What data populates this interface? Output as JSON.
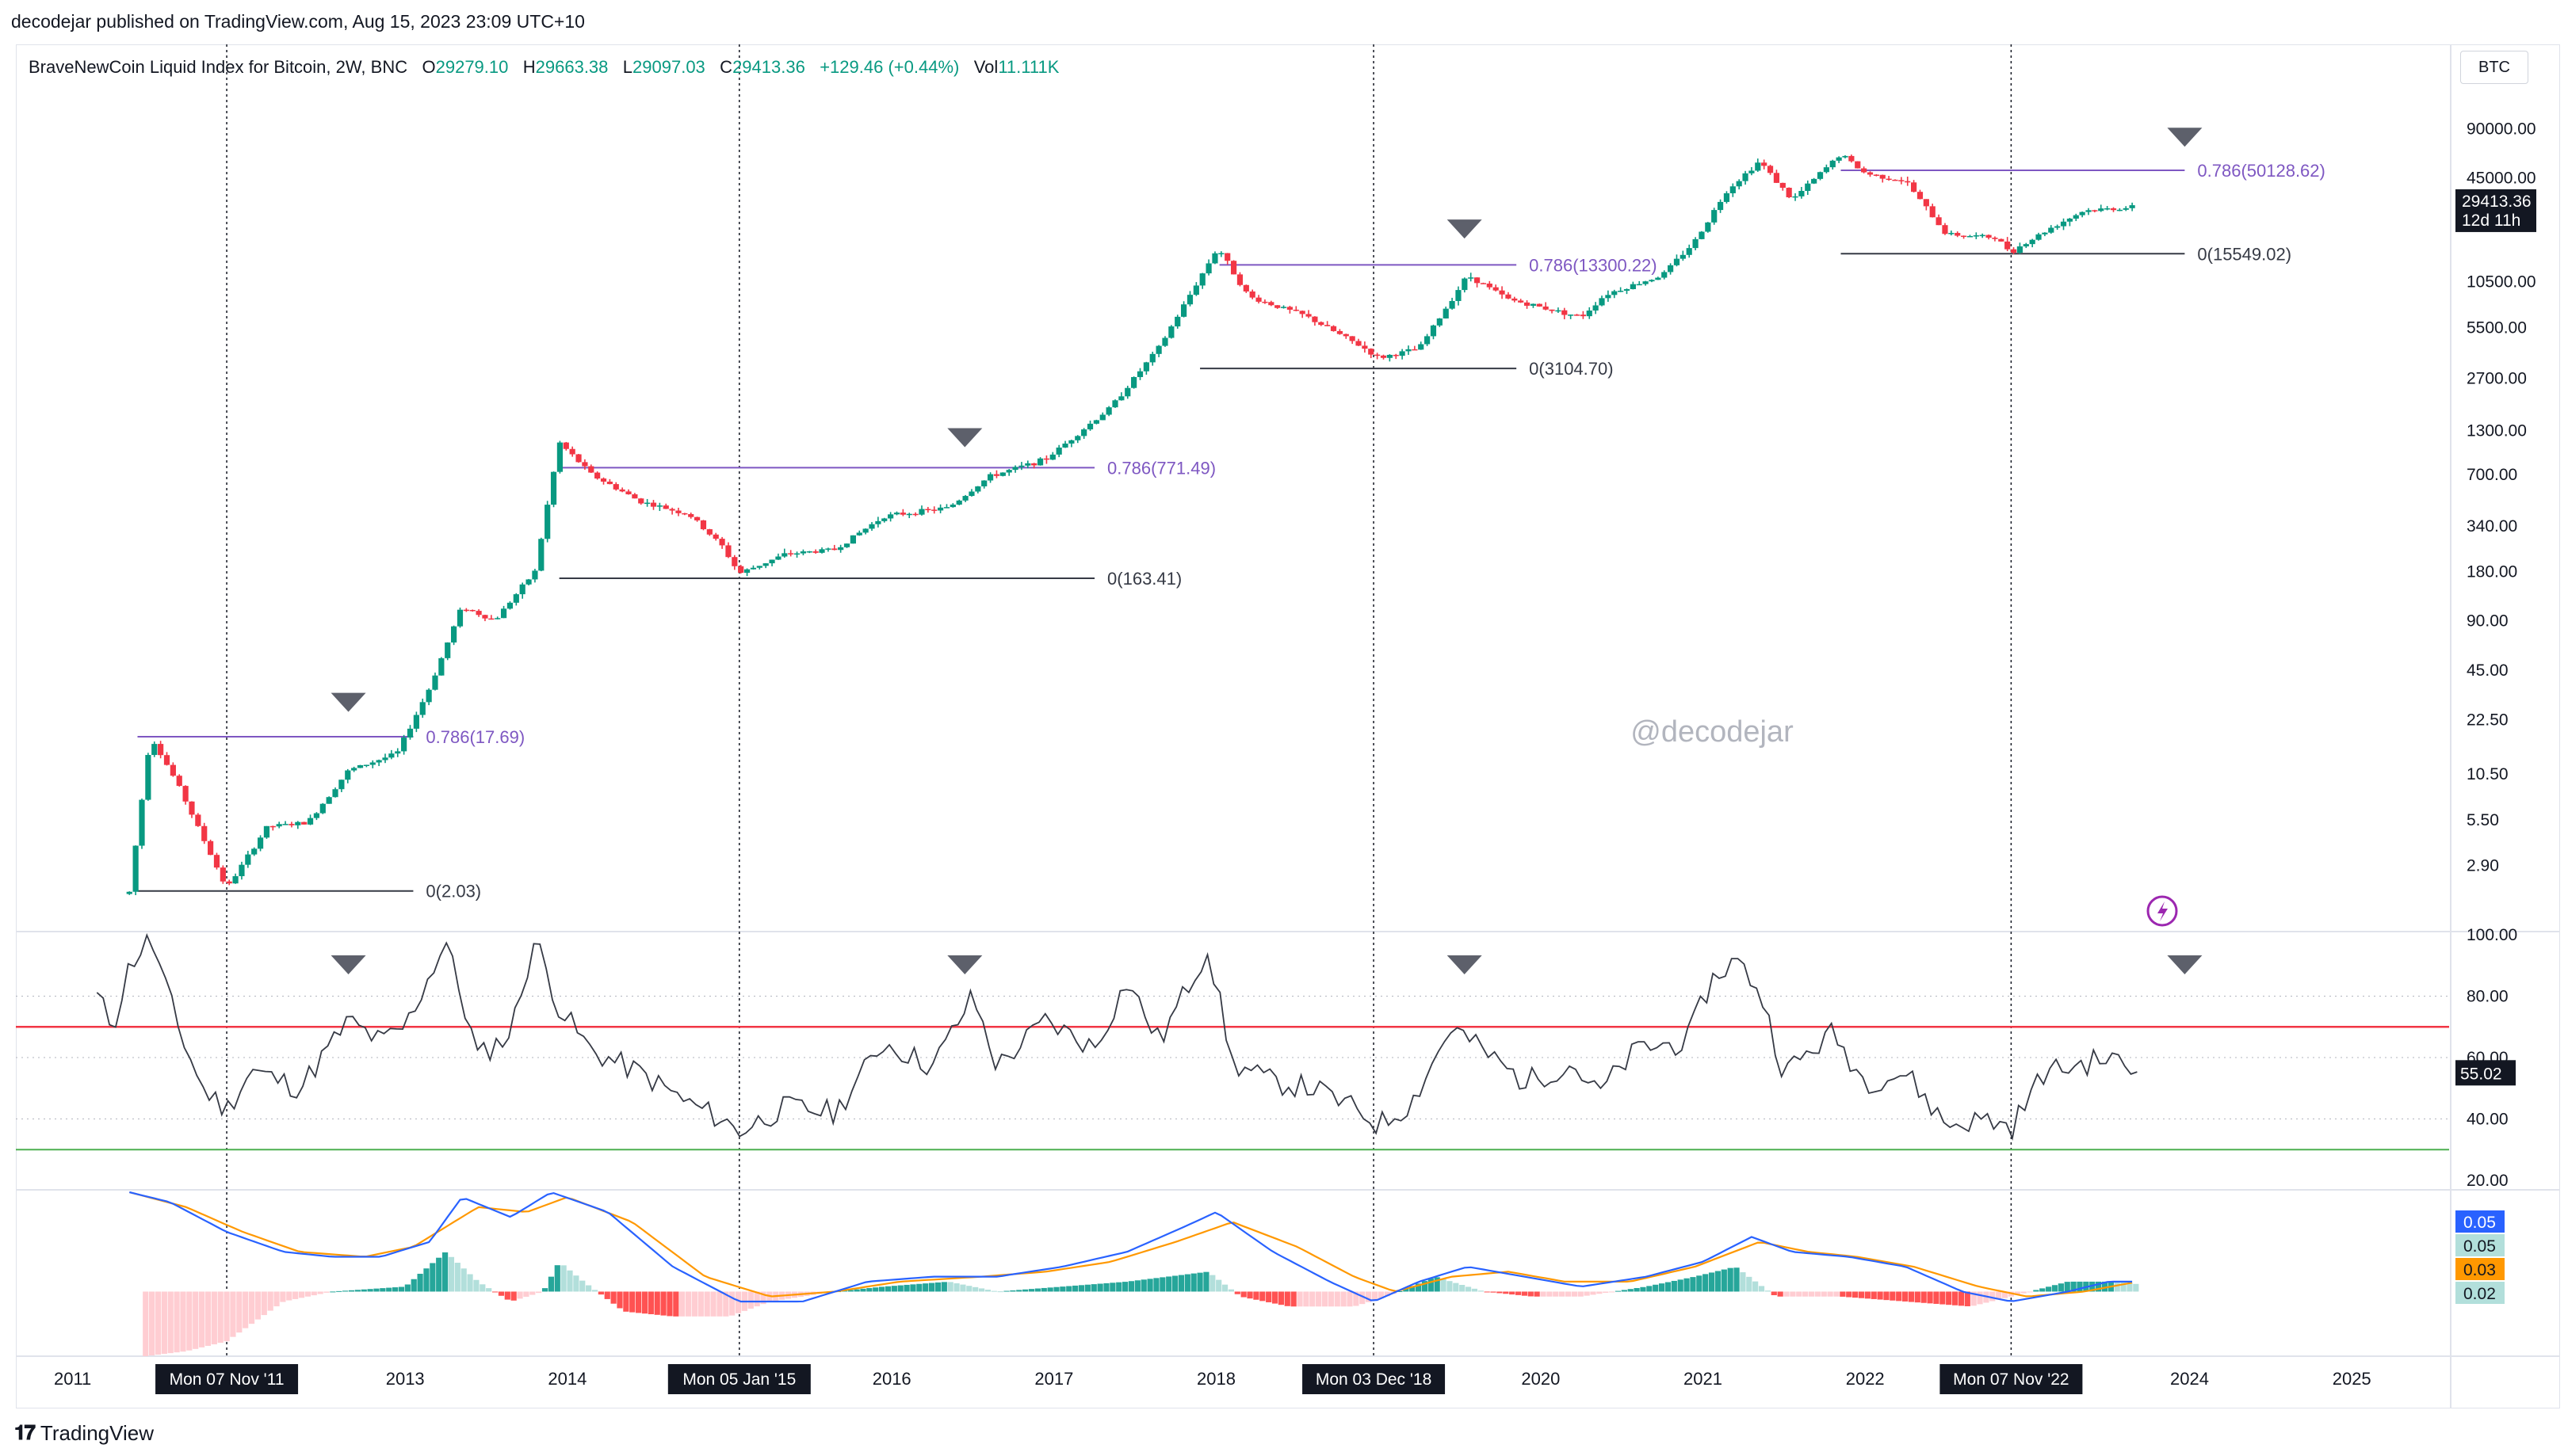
{
  "publisher": "decodejar published on TradingView.com, Aug 15, 2023 23:09 UTC+10",
  "legend": {
    "title": "BraveNewCoin Liquid Index for Bitcoin, 2W, BNC",
    "o_label": "O",
    "o": "29279.10",
    "h_label": "H",
    "h": "29663.38",
    "l_label": "L",
    "l": "29097.03",
    "c_label": "C",
    "c": "29413.36",
    "change": "+129.46 (+0.44%)",
    "vol_label": "Vol",
    "vol": "11.111K"
  },
  "currency": "BTC",
  "watermark": "@decodejar",
  "footer_brand": "TradingView",
  "colors": {
    "up": "#089981",
    "down": "#f23645",
    "fib": "#7e57c2",
    "rsi": "#363a45",
    "macd": "#2962ff",
    "signal": "#ff9800",
    "upper_band": "#f23645",
    "lower_band": "#4caf50"
  },
  "chart_data": [
    {
      "type": "candlestick",
      "scale": "log",
      "ylim": [
        1.2,
        180000
      ],
      "price_ticks": [
        "90000.00",
        "45000.00",
        "10500.00",
        "5500.00",
        "2700.00",
        "1300.00",
        "700.00",
        "340.00",
        "180.00",
        "90.00",
        "45.00",
        "22.50",
        "10.50",
        "5.50",
        "2.90"
      ],
      "price_tick_values": [
        90000,
        45000,
        10500,
        5500,
        2700,
        1300,
        700,
        340,
        180,
        90,
        45,
        22.5,
        10.5,
        5.5,
        2.9
      ],
      "last_price": "29413.36",
      "countdown": "12d 11h",
      "x_labels": [
        "2011",
        "2013",
        "2014",
        "2016",
        "2017",
        "2018",
        "2020",
        "2021",
        "2022",
        "2024",
        "2025"
      ],
      "x_label_years": [
        2010.9,
        2012.95,
        2013.95,
        2015.95,
        2016.95,
        2017.95,
        2019.95,
        2020.95,
        2021.95,
        2023.95,
        2024.95
      ],
      "date_markers": [
        {
          "label": "Mon 07 Nov '11",
          "year": 2011.85
        },
        {
          "label": "Mon 05 Jan '15",
          "year": 2015.01
        },
        {
          "label": "Mon 03 Dec '18",
          "year": 2018.92
        },
        {
          "label": "Mon 07 Nov '22",
          "year": 2022.85
        }
      ],
      "fib_levels": [
        {
          "label": "0.786(17.69)",
          "price": 17.69,
          "x1": 2011.3,
          "x2": 2013.0,
          "kind": "fib"
        },
        {
          "label": "0(2.03)",
          "price": 2.03,
          "x1": 2011.3,
          "x2": 2013.0,
          "kind": "zero"
        },
        {
          "label": "0.786(771.49)",
          "price": 771.49,
          "x1": 2013.9,
          "x2": 2017.2,
          "kind": "fib"
        },
        {
          "label": "0(163.41)",
          "price": 163.41,
          "x1": 2013.9,
          "x2": 2017.2,
          "kind": "zero"
        },
        {
          "label": "0.786(13300.22)",
          "price": 13300.22,
          "x1": 2017.97,
          "x2": 2019.8,
          "kind": "fib"
        },
        {
          "label": "0(3104.70)",
          "price": 3104.7,
          "x1": 2017.85,
          "x2": 2019.8,
          "kind": "zero"
        },
        {
          "label": "0.786(50128.62)",
          "price": 50128.62,
          "x1": 2021.8,
          "x2": 2023.92,
          "kind": "fib"
        },
        {
          "label": "0(15549.02)",
          "price": 15549.02,
          "x1": 2021.8,
          "x2": 2023.92,
          "kind": "zero"
        }
      ],
      "top_markers": [
        {
          "year": 2012.6,
          "price": 28
        },
        {
          "year": 2016.4,
          "price": 1150
        },
        {
          "year": 2019.48,
          "price": 21500
        },
        {
          "year": 2023.92,
          "price": 78000
        }
      ],
      "anchors": [
        [
          2011.25,
          2.0
        ],
        [
          2011.38,
          18
        ],
        [
          2011.55,
          9
        ],
        [
          2011.85,
          2.1
        ],
        [
          2012.1,
          5
        ],
        [
          2012.35,
          5.3
        ],
        [
          2012.6,
          11
        ],
        [
          2012.9,
          14
        ],
        [
          2013.1,
          35
        ],
        [
          2013.3,
          110
        ],
        [
          2013.5,
          90
        ],
        [
          2013.75,
          180
        ],
        [
          2013.9,
          1100
        ],
        [
          2014.1,
          700
        ],
        [
          2014.4,
          480
        ],
        [
          2014.7,
          400
        ],
        [
          2014.9,
          260
        ],
        [
          2015.01,
          175
        ],
        [
          2015.3,
          230
        ],
        [
          2015.6,
          245
        ],
        [
          2015.9,
          390
        ],
        [
          2016.3,
          440
        ],
        [
          2016.55,
          680
        ],
        [
          2016.9,
          870
        ],
        [
          2017.3,
          1800
        ],
        [
          2017.6,
          4200
        ],
        [
          2017.96,
          17000
        ],
        [
          2018.15,
          8500
        ],
        [
          2018.5,
          6500
        ],
        [
          2018.85,
          4200
        ],
        [
          2018.95,
          3600
        ],
        [
          2019.2,
          4100
        ],
        [
          2019.5,
          11500
        ],
        [
          2019.75,
          8200
        ],
        [
          2020.2,
          6400
        ],
        [
          2020.35,
          8800
        ],
        [
          2020.7,
          11500
        ],
        [
          2020.9,
          18500
        ],
        [
          2021.1,
          38000
        ],
        [
          2021.3,
          57000
        ],
        [
          2021.5,
          33000
        ],
        [
          2021.8,
          63000
        ],
        [
          2021.95,
          48000
        ],
        [
          2022.2,
          43000
        ],
        [
          2022.45,
          20500
        ],
        [
          2022.75,
          19500
        ],
        [
          2022.85,
          16000
        ],
        [
          2023.1,
          22500
        ],
        [
          2023.3,
          28500
        ],
        [
          2023.6,
          29800
        ],
        [
          2023.63,
          29413
        ]
      ],
      "last_date": 2023.63
    },
    {
      "type": "line",
      "name": "RSI",
      "ylim": [
        20,
        100
      ],
      "y_ticks": [
        "100.00",
        "80.00",
        "60.00",
        "40.00",
        "20.00"
      ],
      "y_tick_values": [
        100,
        80,
        60,
        40,
        20
      ],
      "upper_band": 70,
      "lower_band": 30,
      "last_value": "55.02",
      "anchors": [
        [
          2011.05,
          80
        ],
        [
          2011.15,
          70
        ],
        [
          2011.25,
          90
        ],
        [
          2011.38,
          99
        ],
        [
          2011.55,
          70
        ],
        [
          2011.7,
          50
        ],
        [
          2011.85,
          43
        ],
        [
          2012.0,
          56
        ],
        [
          2012.3,
          50
        ],
        [
          2012.6,
          72
        ],
        [
          2012.8,
          65
        ],
        [
          2012.95,
          70
        ],
        [
          2013.2,
          98
        ],
        [
          2013.4,
          60
        ],
        [
          2013.6,
          68
        ],
        [
          2013.75,
          99
        ],
        [
          2013.9,
          76
        ],
        [
          2014.1,
          62
        ],
        [
          2014.4,
          55
        ],
        [
          2014.7,
          45
        ],
        [
          2014.9,
          40
        ],
        [
          2015.01,
          36
        ],
        [
          2015.3,
          44
        ],
        [
          2015.6,
          42
        ],
        [
          2015.9,
          65
        ],
        [
          2016.2,
          57
        ],
        [
          2016.45,
          80
        ],
        [
          2016.6,
          57
        ],
        [
          2016.9,
          72
        ],
        [
          2017.2,
          63
        ],
        [
          2017.4,
          85
        ],
        [
          2017.6,
          65
        ],
        [
          2017.9,
          96
        ],
        [
          2018.05,
          58
        ],
        [
          2018.3,
          52
        ],
        [
          2018.55,
          50
        ],
        [
          2018.85,
          42
        ],
        [
          2018.95,
          38
        ],
        [
          2019.15,
          45
        ],
        [
          2019.4,
          70
        ],
        [
          2019.6,
          62
        ],
        [
          2019.85,
          52
        ],
        [
          2020.15,
          58
        ],
        [
          2020.3,
          48
        ],
        [
          2020.55,
          63
        ],
        [
          2020.85,
          65
        ],
        [
          2021.0,
          85
        ],
        [
          2021.15,
          92
        ],
        [
          2021.3,
          82
        ],
        [
          2021.45,
          55
        ],
        [
          2021.75,
          68
        ],
        [
          2021.95,
          52
        ],
        [
          2022.2,
          55
        ],
        [
          2022.45,
          38
        ],
        [
          2022.7,
          40
        ],
        [
          2022.85,
          37
        ],
        [
          2023.05,
          55
        ],
        [
          2023.3,
          58
        ],
        [
          2023.45,
          60
        ],
        [
          2023.63,
          55
        ]
      ]
    },
    {
      "type": "histogram+line",
      "name": "MACD",
      "ylim": [
        -0.13,
        0.2
      ],
      "values": [
        "0.05",
        "0.05",
        "0.03",
        "0.02"
      ],
      "histogram_anchors": [
        [
          2011.35,
          -0.13
        ],
        [
          2011.6,
          -0.12
        ],
        [
          2011.85,
          -0.1
        ],
        [
          2012.2,
          -0.02
        ],
        [
          2012.5,
          0.0
        ],
        [
          2012.95,
          0.01
        ],
        [
          2013.2,
          0.08
        ],
        [
          2013.4,
          0.02
        ],
        [
          2013.6,
          -0.02
        ],
        [
          2013.8,
          0.0
        ],
        [
          2013.9,
          0.06
        ],
        [
          2014.05,
          0.02
        ],
        [
          2014.3,
          -0.04
        ],
        [
          2014.6,
          -0.05
        ],
        [
          2014.95,
          -0.05
        ],
        [
          2015.2,
          -0.02
        ],
        [
          2015.6,
          0.0
        ],
        [
          2015.9,
          0.01
        ],
        [
          2016.3,
          0.02
        ],
        [
          2016.6,
          0.0
        ],
        [
          2017.0,
          0.01
        ],
        [
          2017.4,
          0.02
        ],
        [
          2017.9,
          0.04
        ],
        [
          2018.1,
          -0.01
        ],
        [
          2018.4,
          -0.03
        ],
        [
          2018.8,
          -0.03
        ],
        [
          2019.0,
          -0.01
        ],
        [
          2019.3,
          0.03
        ],
        [
          2019.6,
          0.0
        ],
        [
          2019.9,
          -0.01
        ],
        [
          2020.2,
          -0.01
        ],
        [
          2020.6,
          0.01
        ],
        [
          2020.9,
          0.03
        ],
        [
          2021.15,
          0.05
        ],
        [
          2021.4,
          -0.01
        ],
        [
          2021.8,
          -0.01
        ],
        [
          2022.2,
          -0.02
        ],
        [
          2022.6,
          -0.03
        ],
        [
          2022.85,
          -0.01
        ],
        [
          2023.2,
          0.02
        ],
        [
          2023.5,
          0.02
        ],
        [
          2023.63,
          0.015
        ]
      ],
      "macd_anchors": [
        [
          2011.25,
          0.2
        ],
        [
          2011.5,
          0.18
        ],
        [
          2011.85,
          0.12
        ],
        [
          2012.2,
          0.08
        ],
        [
          2012.5,
          0.07
        ],
        [
          2012.8,
          0.07
        ],
        [
          2013.1,
          0.1
        ],
        [
          2013.3,
          0.19
        ],
        [
          2013.6,
          0.15
        ],
        [
          2013.85,
          0.2
        ],
        [
          2014.2,
          0.16
        ],
        [
          2014.6,
          0.05
        ],
        [
          2015.01,
          -0.02
        ],
        [
          2015.4,
          -0.02
        ],
        [
          2015.8,
          0.02
        ],
        [
          2016.2,
          0.03
        ],
        [
          2016.6,
          0.03
        ],
        [
          2017.0,
          0.05
        ],
        [
          2017.4,
          0.08
        ],
        [
          2017.75,
          0.13
        ],
        [
          2017.95,
          0.16
        ],
        [
          2018.3,
          0.08
        ],
        [
          2018.65,
          0.02
        ],
        [
          2018.92,
          -0.02
        ],
        [
          2019.2,
          0.02
        ],
        [
          2019.5,
          0.05
        ],
        [
          2019.85,
          0.03
        ],
        [
          2020.2,
          0.01
        ],
        [
          2020.6,
          0.03
        ],
        [
          2020.95,
          0.06
        ],
        [
          2021.25,
          0.11
        ],
        [
          2021.5,
          0.08
        ],
        [
          2021.85,
          0.07
        ],
        [
          2022.2,
          0.05
        ],
        [
          2022.55,
          0.0
        ],
        [
          2022.85,
          -0.02
        ],
        [
          2023.2,
          0.0
        ],
        [
          2023.45,
          0.02
        ],
        [
          2023.63,
          0.02
        ]
      ],
      "signal_anchors": [
        [
          2011.25,
          0.2
        ],
        [
          2011.6,
          0.17
        ],
        [
          2011.95,
          0.12
        ],
        [
          2012.3,
          0.08
        ],
        [
          2012.7,
          0.07
        ],
        [
          2013.0,
          0.09
        ],
        [
          2013.4,
          0.17
        ],
        [
          2013.7,
          0.16
        ],
        [
          2013.95,
          0.19
        ],
        [
          2014.35,
          0.14
        ],
        [
          2014.8,
          0.03
        ],
        [
          2015.2,
          -0.01
        ],
        [
          2015.6,
          0.0
        ],
        [
          2016.0,
          0.02
        ],
        [
          2016.5,
          0.03
        ],
        [
          2016.9,
          0.04
        ],
        [
          2017.3,
          0.06
        ],
        [
          2017.7,
          0.1
        ],
        [
          2018.05,
          0.14
        ],
        [
          2018.45,
          0.09
        ],
        [
          2018.8,
          0.03
        ],
        [
          2019.05,
          0.0
        ],
        [
          2019.4,
          0.03
        ],
        [
          2019.75,
          0.04
        ],
        [
          2020.1,
          0.02
        ],
        [
          2020.5,
          0.02
        ],
        [
          2020.9,
          0.05
        ],
        [
          2021.3,
          0.1
        ],
        [
          2021.6,
          0.08
        ],
        [
          2021.9,
          0.07
        ],
        [
          2022.25,
          0.05
        ],
        [
          2022.65,
          0.01
        ],
        [
          2022.95,
          -0.01
        ],
        [
          2023.3,
          0.0
        ],
        [
          2023.63,
          0.02
        ]
      ]
    }
  ]
}
